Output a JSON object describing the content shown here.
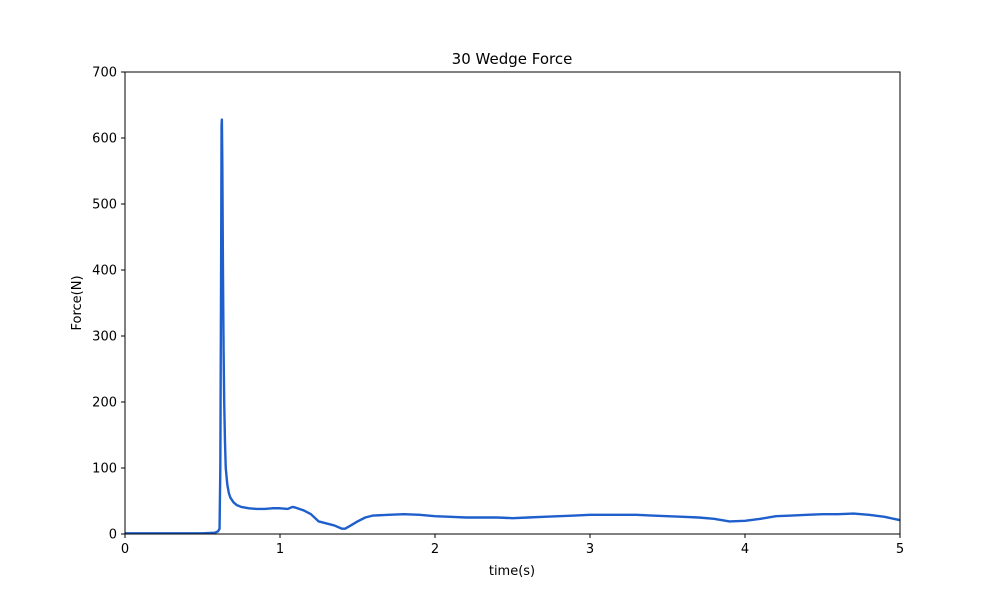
{
  "chart_data": {
    "type": "line",
    "title": "30 Wedge Force",
    "xlabel": "time(s)",
    "ylabel": "Force(N)",
    "xlim": [
      0,
      5
    ],
    "ylim": [
      0,
      700
    ],
    "xticks": [
      0,
      1,
      2,
      3,
      4,
      5
    ],
    "yticks": [
      0,
      100,
      200,
      300,
      400,
      500,
      600,
      700
    ],
    "grid": false,
    "line_color": "#1f5fcc",
    "series": [
      {
        "x": [
          0,
          0.3,
          0.5,
          0.58,
          0.6,
          0.61,
          0.615,
          0.62,
          0.623,
          0.625,
          0.628,
          0.632,
          0.636,
          0.64,
          0.645,
          0.65,
          0.66,
          0.67,
          0.68,
          0.7,
          0.72,
          0.75,
          0.8,
          0.85,
          0.9,
          0.95,
          1.0,
          1.05,
          1.08,
          1.1,
          1.15,
          1.2,
          1.25,
          1.3,
          1.35,
          1.4,
          1.42,
          1.45,
          1.5,
          1.55,
          1.6,
          1.7,
          1.8,
          1.9,
          2.0,
          2.1,
          2.2,
          2.3,
          2.4,
          2.5,
          2.6,
          2.7,
          2.8,
          2.9,
          3.0,
          3.1,
          3.2,
          3.3,
          3.4,
          3.5,
          3.6,
          3.7,
          3.8,
          3.9,
          4.0,
          4.1,
          4.2,
          4.3,
          4.4,
          4.5,
          4.6,
          4.7,
          4.8,
          4.9,
          5.0
        ],
        "y": [
          1,
          1,
          1,
          2,
          4,
          8,
          100,
          400,
          620,
          628,
          560,
          400,
          280,
          200,
          140,
          100,
          75,
          62,
          55,
          48,
          44,
          41,
          39,
          38,
          38,
          39,
          39,
          38,
          41,
          40,
          36,
          30,
          19,
          16,
          13,
          8,
          8,
          12,
          19,
          25,
          28,
          29,
          30,
          29,
          27,
          26,
          25,
          25,
          25,
          24,
          25,
          26,
          27,
          28,
          29,
          29,
          29,
          29,
          28,
          27,
          26,
          25,
          23,
          19,
          20,
          23,
          27,
          28,
          29,
          30,
          30,
          31,
          29,
          26,
          21
        ]
      }
    ]
  }
}
